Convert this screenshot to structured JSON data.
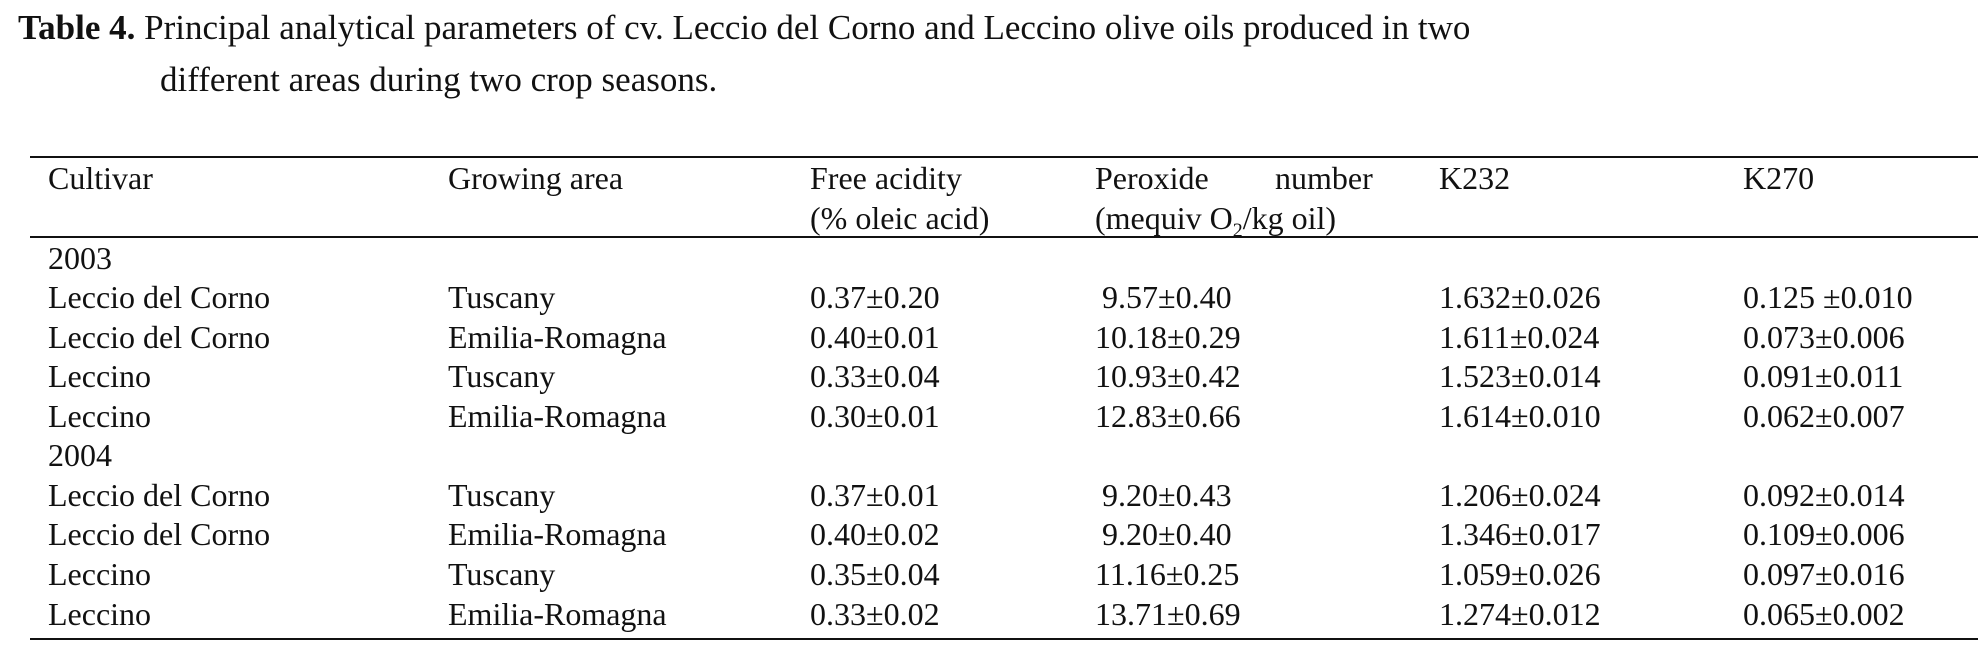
{
  "caption": {
    "label": "Table 4.",
    "line1": " Principal analytical parameters of cv. Leccio del Corno and Leccino olive oils produced in two",
    "line2": "different areas during two crop seasons."
  },
  "headers": {
    "cultivar": "Cultivar",
    "growing_area": "Growing area",
    "free_acidity_1": "Free acidity",
    "free_acidity_2": "(% oleic acid)",
    "peroxide_1a": "Peroxide",
    "peroxide_1b": "number",
    "peroxide_2a": "(mequiv O",
    "peroxide_2sub": "2",
    "peroxide_2b": "/kg oil)",
    "k232": "K232",
    "k270": "K270"
  },
  "years": [
    "2003",
    "2004"
  ],
  "rows": [
    {
      "cultivar": "Leccio del Corno",
      "area": "Tuscany",
      "free_acidity": "0.37±0.20",
      "peroxide": "9.57±0.40",
      "k232": "1.632±0.026",
      "k270": "0.125 ±0.010"
    },
    {
      "cultivar": "Leccio del Corno",
      "area": "Emilia-Romagna",
      "free_acidity": "0.40±0.01",
      "peroxide": "10.18±0.29",
      "k232": "1.611±0.024",
      "k270": "0.073±0.006"
    },
    {
      "cultivar": "Leccino",
      "area": "Tuscany",
      "free_acidity": "0.33±0.04",
      "peroxide": "10.93±0.42",
      "k232": "1.523±0.014",
      "k270": "0.091±0.011"
    },
    {
      "cultivar": "Leccino",
      "area": "Emilia-Romagna",
      "free_acidity": "0.30±0.01",
      "peroxide": "12.83±0.66",
      "k232": "1.614±0.010",
      "k270": "0.062±0.007"
    },
    {
      "cultivar": "Leccio del Corno",
      "area": "Tuscany",
      "free_acidity": "0.37±0.01",
      "peroxide": "9.20±0.43",
      "k232": "1.206±0.024",
      "k270": "0.092±0.014"
    },
    {
      "cultivar": "Leccio del Corno",
      "area": "Emilia-Romagna",
      "free_acidity": "0.40±0.02",
      "peroxide": "9.20±0.40",
      "k232": "1.346±0.017",
      "k270": "0.109±0.006"
    },
    {
      "cultivar": "Leccino",
      "area": "Tuscany",
      "free_acidity": "0.35±0.04",
      "peroxide": "11.16±0.25",
      "k232": "1.059±0.026",
      "k270": "0.097±0.016"
    },
    {
      "cultivar": "Leccino",
      "area": "Emilia-Romagna",
      "free_acidity": "0.33±0.02",
      "peroxide": "13.71±0.69",
      "k232": "1.274±0.012",
      "k270": "0.065±0.002"
    }
  ]
}
